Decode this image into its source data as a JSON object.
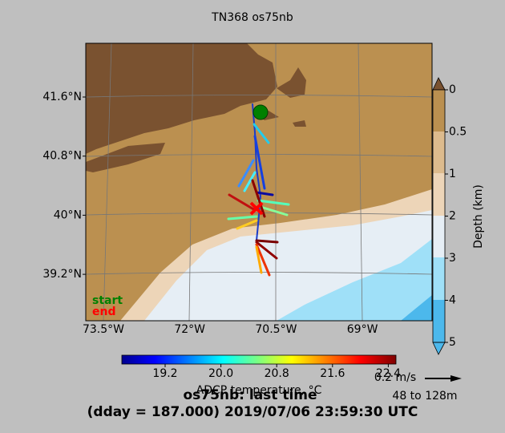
{
  "map": {
    "title": "TN368 os75nb",
    "lat_labels": [
      "41.6°N",
      "40.8°N",
      "40°N",
      "39.2°N"
    ],
    "lon_labels": [
      "73.5°W",
      "72°W",
      "70.5°W",
      "69°W"
    ],
    "legend": {
      "start": "start",
      "end": "end"
    },
    "depth_colorbar": {
      "label": "Depth (km)",
      "ticks": [
        "0",
        "0.5",
        "1",
        "2",
        "3",
        "4",
        "5"
      ]
    },
    "temp_colorbar": {
      "label": "ADCP temperature, °C",
      "ticks": [
        "19.2",
        "20.0",
        "20.8",
        "21.6",
        "22.4"
      ]
    },
    "scale": {
      "label": "0.2 m/s",
      "depth": "48 to 128m"
    },
    "footer": {
      "line1": "os75nb: last time",
      "line2": "(dday = 187.000) 2019/07/06 23:59:30 UTC"
    }
  }
}
